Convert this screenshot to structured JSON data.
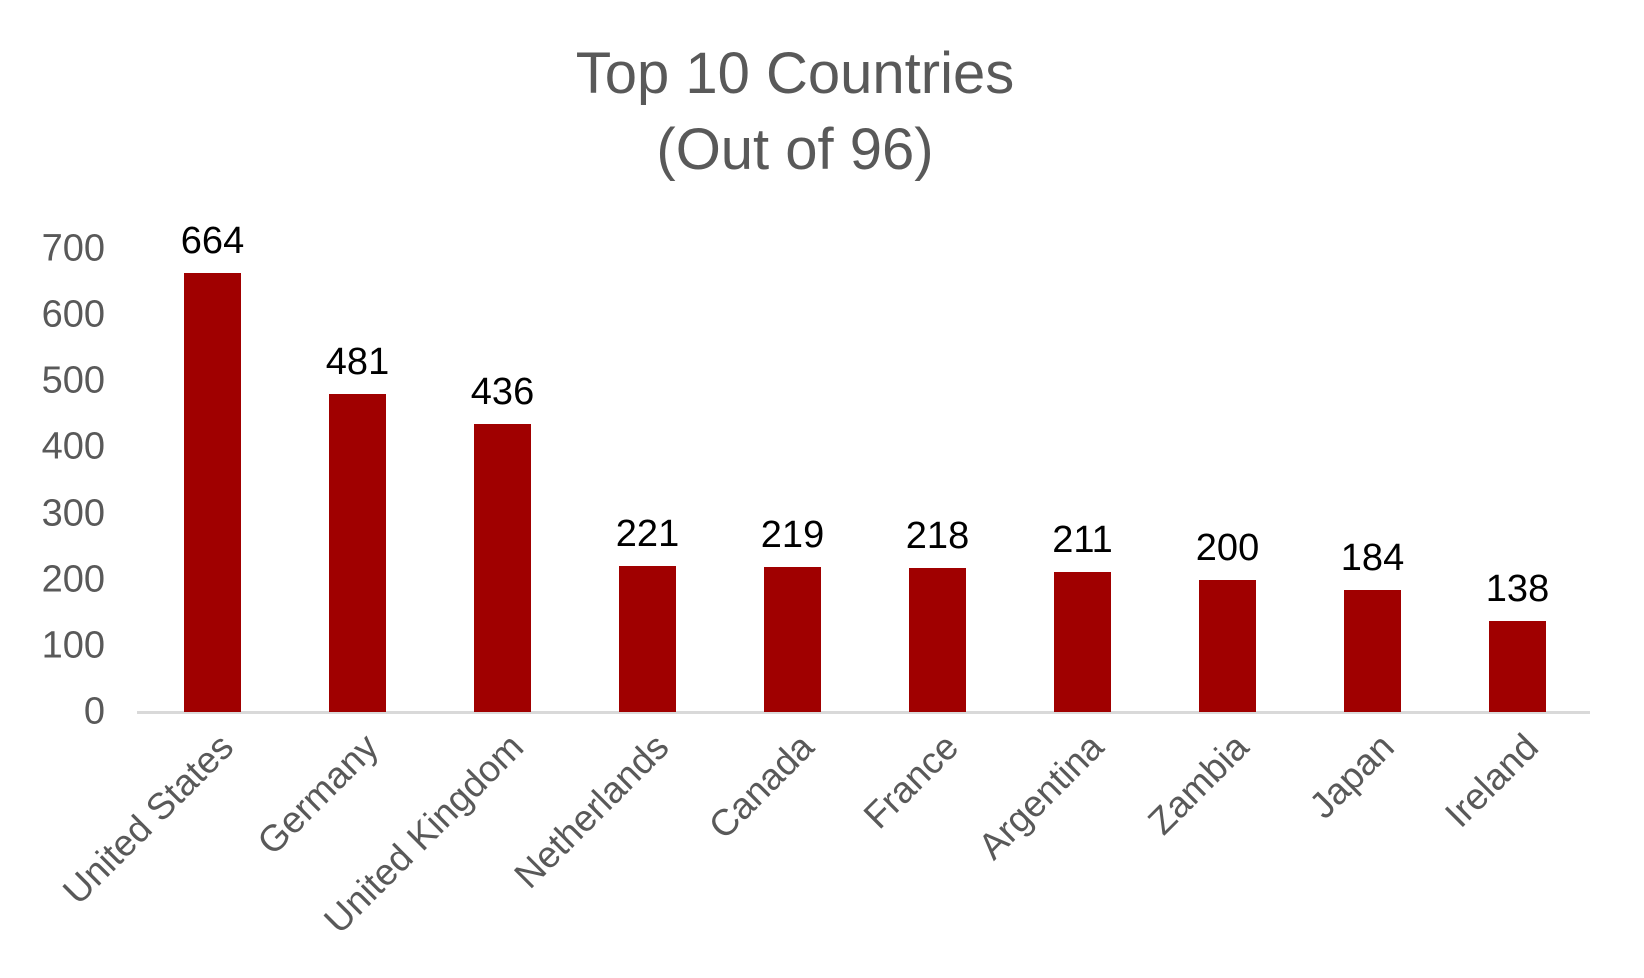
{
  "chart_data": {
    "type": "bar",
    "title": "Top 10 Countries",
    "subtitle": "(Out of 96)",
    "categories": [
      "United States",
      "Germany",
      "United Kingdom",
      "Netherlands",
      "Canada",
      "France",
      "Argentina",
      "Zambia",
      "Japan",
      "Ireland"
    ],
    "values": [
      664,
      481,
      436,
      221,
      219,
      218,
      211,
      200,
      184,
      138
    ],
    "xlabel": "",
    "ylabel": "",
    "ylim": [
      0,
      700
    ],
    "ytick_step": 100,
    "yticks": [
      0,
      100,
      200,
      300,
      400,
      500,
      600,
      700
    ],
    "grid": "off",
    "legend": "none",
    "bar_color": "#A00000",
    "axis_text_color": "#595959",
    "title_color": "#595959",
    "data_label_color": "#000000",
    "baseline_color": "#D9D9D9"
  }
}
